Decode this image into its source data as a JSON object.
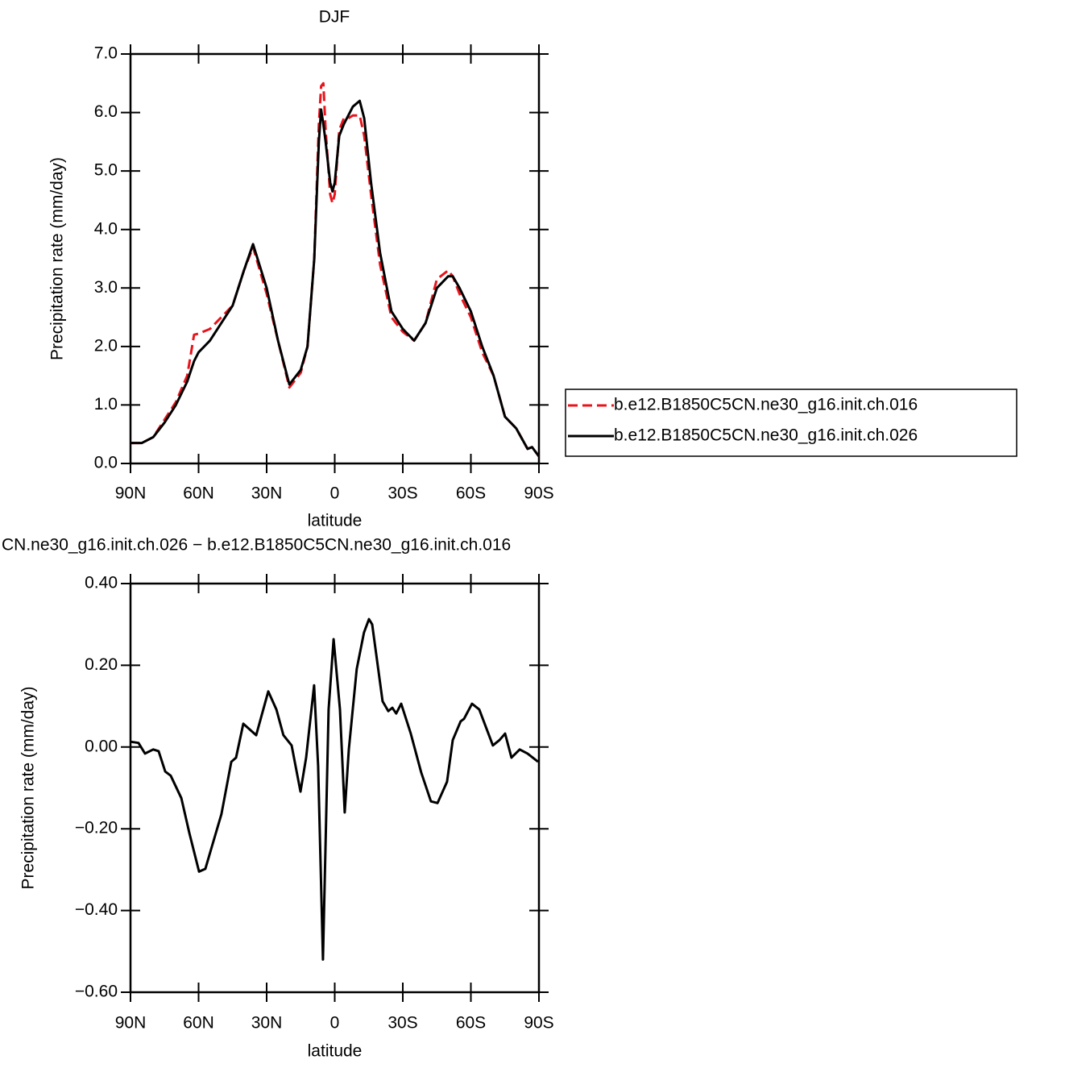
{
  "chart_data": [
    {
      "type": "line",
      "title": "DJF",
      "xlabel": "latitude",
      "ylabel": "Precipitation rate (mm/day)",
      "xlim": [
        90,
        -90
      ],
      "xticks": [
        {
          "value": 90,
          "label": "90N"
        },
        {
          "value": 60,
          "label": "60N"
        },
        {
          "value": 30,
          "label": "30N"
        },
        0,
        {
          "value": -30,
          "label": "30S"
        },
        {
          "value": -60,
          "label": "60S"
        },
        {
          "value": -90,
          "label": "90S"
        }
      ],
      "ylim": [
        0,
        7
      ],
      "yticks": [
        {
          "value": 0,
          "label": "0.0"
        },
        {
          "value": 1,
          "label": "1.0"
        },
        {
          "value": 2,
          "label": "2.0"
        },
        {
          "value": 3,
          "label": "3.0"
        },
        {
          "value": 4,
          "label": "4.0"
        },
        {
          "value": 5,
          "label": "5.0"
        },
        {
          "value": 6,
          "label": "6.0"
        },
        {
          "value": 7,
          "label": "7.0"
        }
      ],
      "legend": "right",
      "x": [
        90,
        85,
        80,
        75,
        70,
        65,
        62,
        60,
        55,
        50,
        45,
        40,
        36,
        30,
        25,
        20,
        15,
        12,
        9,
        7,
        6,
        5,
        4,
        2,
        1,
        0,
        -2,
        -4,
        -6,
        -8,
        -11,
        -13,
        -16,
        -20,
        -25,
        -30,
        -35,
        -40,
        -45,
        -50,
        -52,
        -55,
        -60,
        -65,
        -70,
        -75,
        -80,
        -85,
        -87,
        -90
      ],
      "series": [
        {
          "name": "b.e12.B1850C5CN.ne30_g16.init.ch.016",
          "color": "#e8141c",
          "style": "dashed",
          "values": [
            0.35,
            0.35,
            0.45,
            0.75,
            1.05,
            1.5,
            2.2,
            2.22,
            2.3,
            2.5,
            2.7,
            3.3,
            3.7,
            2.9,
            2.1,
            1.3,
            1.55,
            2.0,
            3.5,
            5.8,
            6.45,
            6.5,
            5.7,
            4.6,
            4.45,
            4.6,
            5.7,
            5.9,
            5.9,
            5.95,
            5.95,
            5.6,
            4.6,
            3.4,
            2.5,
            2.25,
            2.1,
            2.4,
            3.15,
            3.3,
            3.2,
            2.9,
            2.5,
            1.9,
            1.5,
            0.8,
            0.6,
            0.25,
            0.28,
            0.12
          ]
        },
        {
          "name": "b.e12.B1850C5CN.ne30_g16.init.ch.026",
          "color": "#000000",
          "style": "solid",
          "values": [
            0.35,
            0.35,
            0.45,
            0.7,
            1.0,
            1.4,
            1.75,
            1.9,
            2.1,
            2.4,
            2.7,
            3.3,
            3.75,
            3.0,
            2.1,
            1.35,
            1.6,
            2.0,
            3.5,
            5.5,
            6.05,
            5.8,
            5.5,
            4.8,
            4.65,
            4.8,
            5.6,
            5.8,
            5.95,
            6.1,
            6.2,
            5.9,
            4.8,
            3.6,
            2.6,
            2.3,
            2.1,
            2.4,
            3.0,
            3.2,
            3.2,
            3.0,
            2.6,
            2.0,
            1.5,
            0.8,
            0.6,
            0.25,
            0.28,
            0.12
          ]
        }
      ]
    },
    {
      "type": "line",
      "title": "CN.ne30_g16.init.ch.026 − b.e12.B1850C5CN.ne30_g16.init.ch.016",
      "xlabel": "latitude",
      "ylabel": "Precipitation rate (mm/day)",
      "xlim": [
        90,
        -90
      ],
      "xticks": [
        {
          "value": 90,
          "label": "90N"
        },
        {
          "value": 60,
          "label": "60N"
        },
        {
          "value": 30,
          "label": "30N"
        },
        0,
        {
          "value": -30,
          "label": "30S"
        },
        {
          "value": -60,
          "label": "60S"
        },
        {
          "value": -90,
          "label": "90S"
        }
      ],
      "ylim": [
        -0.6,
        0.4
      ],
      "yticks": [
        {
          "value": -0.6,
          "label": "−0.60"
        },
        {
          "value": -0.4,
          "label": "−0.40"
        },
        {
          "value": -0.2,
          "label": "−0.20"
        },
        {
          "value": 0,
          "label": "0.00"
        },
        {
          "value": 0.2,
          "label": "0.20"
        },
        {
          "value": 0.4,
          "label": "0.40"
        }
      ],
      "x": [
        90,
        86.5,
        83.6,
        80,
        77.6,
        74.7,
        72.3,
        67.6,
        64.1,
        59.8,
        57,
        54.1,
        49.9,
        45.6,
        43.5,
        40.3,
        34.6,
        29.3,
        25.7,
        22.6,
        19,
        15.1,
        12.6,
        9.1,
        7.3,
        5.2,
        2.7,
        0.5,
        -2.3,
        -4.4,
        -6.2,
        -9.7,
        -12.9,
        -15.1,
        -16.5,
        -21.1,
        -23.6,
        -25.4,
        -27.1,
        -29.3,
        -33.5,
        -38.1,
        -42.4,
        -45.3,
        -49.5,
        -52,
        -55.5,
        -57,
        -60.5,
        -63.7,
        -69.7,
        -72.6,
        -75.1,
        -77.9,
        -81.5,
        -85,
        -89.6
      ],
      "series": [
        {
          "color": "#000000",
          "style": "solid",
          "values": [
            0.013,
            0.01,
            -0.016,
            -0.006,
            -0.01,
            -0.06,
            -0.07,
            -0.125,
            -0.21,
            -0.305,
            -0.298,
            -0.243,
            -0.164,
            -0.036,
            -0.026,
            0.057,
            0.029,
            0.136,
            0.092,
            0.029,
            0.004,
            -0.109,
            -0.026,
            0.151,
            -0.046,
            -0.52,
            0.092,
            0.264,
            0.092,
            -0.16,
            -0.006,
            0.191,
            0.28,
            0.313,
            0.3,
            0.112,
            0.088,
            0.096,
            0.082,
            0.106,
            0.033,
            -0.062,
            -0.133,
            -0.137,
            -0.085,
            0.017,
            0.063,
            0.069,
            0.106,
            0.092,
            0.004,
            0.017,
            0.033,
            -0.026,
            -0.006,
            -0.016,
            -0.036
          ]
        }
      ]
    }
  ]
}
